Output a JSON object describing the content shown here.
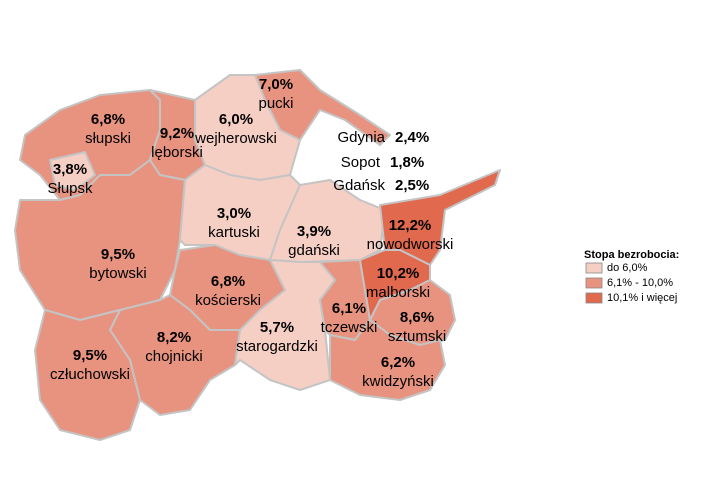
{
  "regions": [
    {
      "name": "pucki",
      "value": "7,0%",
      "color": "#e8937f"
    },
    {
      "name": "wejherowski",
      "value": "6,0%",
      "color": "#f6cfc4"
    },
    {
      "name": "słupski",
      "value": "6,8%",
      "color": "#e8937f"
    },
    {
      "name": "lęborski",
      "value": "9,2%",
      "color": "#e8937f"
    },
    {
      "name": "Słupsk",
      "value": "3,8%",
      "color": "#f6cfc4"
    },
    {
      "name": "bytowski",
      "value": "9,5%",
      "color": "#e8937f"
    },
    {
      "name": "kartuski",
      "value": "3,0%",
      "color": "#f6cfc4"
    },
    {
      "name": "gdański",
      "value": "3,9%",
      "color": "#f6cfc4"
    },
    {
      "name": "nowodworski",
      "value": "12,2%",
      "color": "#e0694e"
    },
    {
      "name": "kościerski",
      "value": "6,8%",
      "color": "#e8937f"
    },
    {
      "name": "chojnicki",
      "value": "8,2%",
      "color": "#e8937f"
    },
    {
      "name": "człuchowski",
      "value": "9,5%",
      "color": "#e8937f"
    },
    {
      "name": "starogardzki",
      "value": "5,7%",
      "color": "#f6cfc4"
    },
    {
      "name": "tczewski",
      "value": "6,1%",
      "color": "#e8937f"
    },
    {
      "name": "malborski",
      "value": "10,2%",
      "color": "#e0694e"
    },
    {
      "name": "sztumski",
      "value": "8,6%",
      "color": "#e8937f"
    },
    {
      "name": "kwidzyński",
      "value": "6,2%",
      "color": "#e8937f"
    }
  ],
  "cities": [
    {
      "name": "Gdynia",
      "value": "2,4%"
    },
    {
      "name": "Sopot",
      "value": "1,8%"
    },
    {
      "name": "Gdańsk",
      "value": "2,5%"
    }
  ],
  "legend": {
    "title": "Stopa bezrobocia:",
    "items": [
      {
        "label": "do 6,0%",
        "color": "#f6cfc4"
      },
      {
        "label": "6,1% - 10,0%",
        "color": "#e8937f"
      },
      {
        "label": "10,1% i więcej",
        "color": "#e0694e"
      }
    ]
  }
}
